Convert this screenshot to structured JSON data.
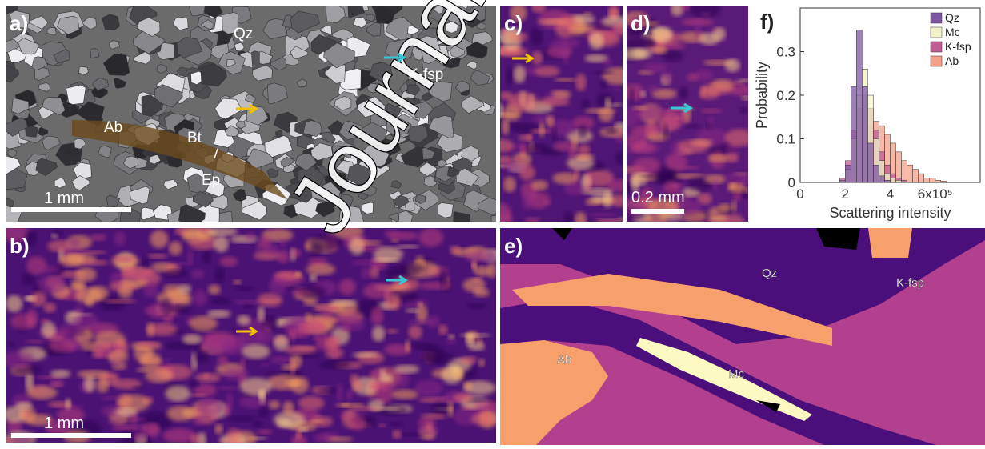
{
  "panels": {
    "a": {
      "label": "a)",
      "annotations": [
        "Qz",
        "K-fsp",
        "Ab",
        "Bt",
        "Ep"
      ],
      "scale": "1 mm"
    },
    "b": {
      "label": "b)",
      "scale": "1 mm"
    },
    "c": {
      "label": "c)"
    },
    "d": {
      "label": "d)",
      "scale": "0.2 mm"
    },
    "e": {
      "label": "e)",
      "annotations": [
        "Qz",
        "K-fsp",
        "Ab",
        "Mc"
      ]
    },
    "f": {
      "label": "f)"
    }
  },
  "watermark": "Journal Pre-proof",
  "chart_data": {
    "type": "histogram",
    "x_label": "Scattering intensity",
    "y_label": "Probability",
    "bins": [
      100000,
      125000,
      150000,
      175000,
      200000,
      225000,
      250000,
      275000,
      300000,
      325000,
      350000,
      375000,
      400000,
      425000,
      450000,
      475000,
      500000,
      525000,
      550000,
      575000,
      600000,
      625000,
      650000
    ],
    "series": [
      {
        "name": "Ab",
        "color": "#f4a08a",
        "values": [
          0,
          0,
          0,
          0,
          0.01,
          0.03,
          0.07,
          0.1,
          0.13,
          0.14,
          0.13,
          0.11,
          0.09,
          0.07,
          0.05,
          0.04,
          0.03,
          0.02,
          0.01,
          0.01,
          0.005,
          0.003
        ]
      },
      {
        "name": "K-fsp",
        "color": "#c25a94",
        "values": [
          0,
          0,
          0,
          0.01,
          0.05,
          0.12,
          0.17,
          0.2,
          0.17,
          0.12,
          0.07,
          0.04,
          0.02,
          0.01,
          0.005,
          0,
          0,
          0,
          0,
          0,
          0,
          0
        ]
      },
      {
        "name": "Mc",
        "color": "#f3f1c6",
        "values": [
          0,
          0,
          0,
          0.005,
          0.03,
          0.1,
          0.2,
          0.26,
          0.2,
          0.1,
          0.05,
          0.02,
          0.01,
          0.005,
          0,
          0,
          0,
          0,
          0,
          0,
          0,
          0
        ]
      },
      {
        "name": "Qz",
        "color": "#7d55a3",
        "values": [
          0,
          0,
          0,
          0.005,
          0.04,
          0.22,
          0.35,
          0.22,
          0.09,
          0.04,
          0.015,
          0.005,
          0,
          0,
          0,
          0,
          0,
          0,
          0,
          0,
          0,
          0
        ]
      }
    ],
    "legend_order": [
      "Qz",
      "Mc",
      "K-fsp",
      "Ab"
    ],
    "legend": "upper right",
    "xlim": [
      0,
      800000
    ],
    "xticks": [
      {
        "value": 0,
        "label": "0"
      },
      {
        "value": 200000,
        "label": "2"
      },
      {
        "value": 400000,
        "label": "4"
      },
      {
        "value": 600000,
        "label": "6x10⁵"
      }
    ],
    "ylim": [
      0,
      0.4
    ],
    "yticks": [
      0,
      0.1,
      0.2,
      0.3
    ]
  }
}
